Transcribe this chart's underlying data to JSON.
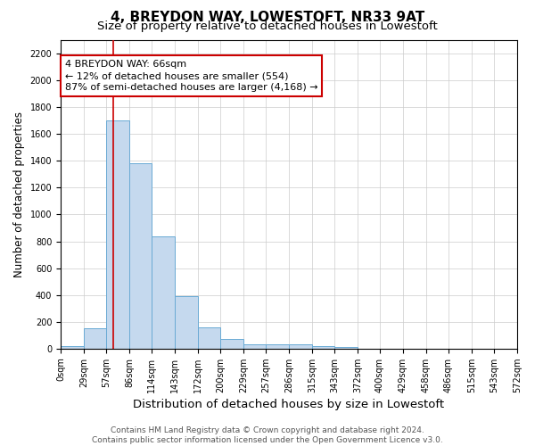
{
  "title": "4, BREYDON WAY, LOWESTOFT, NR33 9AT",
  "subtitle": "Size of property relative to detached houses in Lowestoft",
  "xlabel": "Distribution of detached houses by size in Lowestoft",
  "ylabel": "Number of detached properties",
  "bin_edges": [
    0,
    29,
    57,
    86,
    114,
    143,
    172,
    200,
    229,
    257,
    286,
    315,
    343,
    372,
    400,
    429,
    458,
    486,
    515,
    543,
    572
  ],
  "bar_heights": [
    20,
    150,
    1700,
    1380,
    840,
    390,
    160,
    70,
    30,
    30,
    30,
    20,
    10,
    0,
    0,
    0,
    0,
    0,
    0,
    0
  ],
  "bar_color": "#c5d9ee",
  "bar_edgecolor": "#6aaad4",
  "bar_linewidth": 0.7,
  "vline_x": 66,
  "vline_color": "#cc0000",
  "vline_linewidth": 1.2,
  "annotation_title": "4 BREYDON WAY: 66sqm",
  "annotation_line1": "← 12% of detached houses are smaller (554)",
  "annotation_line2": "87% of semi-detached houses are larger (4,168) →",
  "annotation_box_color": "#cc0000",
  "ylim": [
    0,
    2300
  ],
  "yticks": [
    0,
    200,
    400,
    600,
    800,
    1000,
    1200,
    1400,
    1600,
    1800,
    2000,
    2200
  ],
  "background_color": "#ffffff",
  "grid_color": "#cccccc",
  "footer_line1": "Contains HM Land Registry data © Crown copyright and database right 2024.",
  "footer_line2": "Contains public sector information licensed under the Open Government Licence v3.0.",
  "title_fontsize": 11,
  "subtitle_fontsize": 9.5,
  "xlabel_fontsize": 9.5,
  "ylabel_fontsize": 8.5,
  "tick_fontsize": 7,
  "annotation_fontsize": 8,
  "footer_fontsize": 6.5
}
